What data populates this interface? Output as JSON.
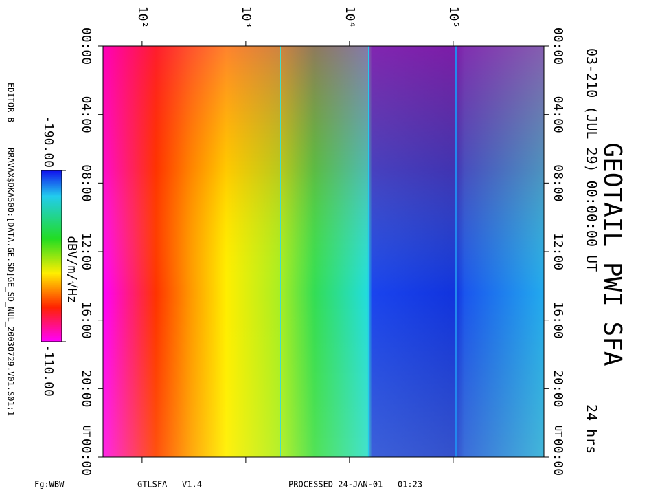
{
  "chart_data": {
    "type": "spectrogram",
    "title": "GEOTAIL PWI SFA",
    "subtitle": "03-210 (JUL 29) 00:00:00 UT",
    "duration_label": "24 hrs",
    "xscale": "log",
    "xlim": [
      42,
      750000
    ],
    "xticks": [
      {
        "value": 100,
        "label": "10²"
      },
      {
        "value": 1000,
        "label": "10³"
      },
      {
        "value": 10000,
        "label": "10⁴"
      },
      {
        "value": 100000,
        "label": "10⁵"
      }
    ],
    "ylim": [
      0,
      24
    ],
    "yticks": [
      {
        "value": 0,
        "label": "00:00"
      },
      {
        "value": 4,
        "label": "04:00"
      },
      {
        "value": 8,
        "label": "08:00"
      },
      {
        "value": 12,
        "label": "12:00"
      },
      {
        "value": 16,
        "label": "16:00"
      },
      {
        "value": 20,
        "label": "20:00"
      },
      {
        "value": 24,
        "label": "00:00"
      }
    ],
    "time_unit_label": "UT",
    "colorbar": {
      "label": "dBV/m/√Hz",
      "range": [
        -190,
        -110
      ],
      "ticks": [
        {
          "value": -190,
          "label": "-190.00"
        },
        {
          "value": -110,
          "label": "-110.00"
        }
      ]
    },
    "editor": "EDITOR B",
    "file": "RRAVAX$DKA500:[DATA.GE.SD]GE_SD_NUL_20030729.V01.S01;1",
    "footer": {
      "mode": "Fg:WBW",
      "program": "GTLSFA   V1.4",
      "processed": "PROCESSED 24-JAN-01   01:23"
    }
  }
}
